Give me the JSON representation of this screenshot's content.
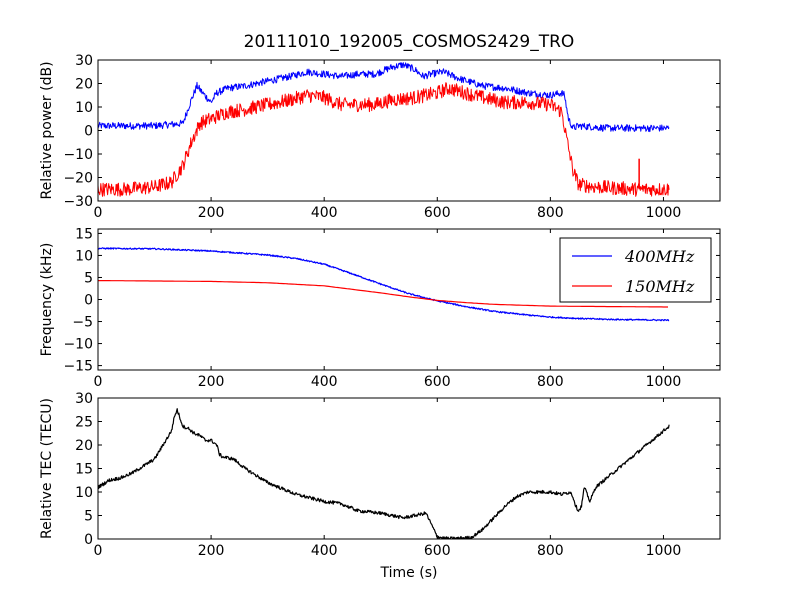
{
  "title": "20111010_192005_COSMOS2429_TRO",
  "xlabel": "Time (s)",
  "chart_data": [
    {
      "type": "line",
      "ylabel": "Relative power (dB)",
      "xlim": [
        0,
        1100
      ],
      "ylim": [
        -30,
        30
      ],
      "xticks": [
        "0",
        "200",
        "400",
        "600",
        "800",
        "1000"
      ],
      "yticks": [
        "30",
        "20",
        "10",
        "0",
        "−10",
        "−20",
        "−30"
      ],
      "series": [
        {
          "color": "#0000ff",
          "noise": 1.5,
          "x": [
            0,
            50,
            100,
            150,
            165,
            175,
            185,
            200,
            210,
            230,
            260,
            300,
            340,
            370,
            400,
            430,
            460,
            490,
            520,
            540,
            560,
            575,
            590,
            610,
            640,
            680,
            720,
            760,
            800,
            820,
            825,
            832,
            840,
            850,
            900,
            950,
            1000,
            1010
          ],
          "y": [
            2,
            2,
            2,
            3,
            13,
            19,
            16,
            12,
            16,
            18,
            19,
            21,
            23,
            25,
            24,
            23,
            24,
            24,
            27,
            28,
            26,
            23,
            24,
            25,
            22,
            19,
            18,
            16,
            15,
            16,
            15,
            5,
            1,
            2,
            1,
            1,
            1,
            1
          ]
        },
        {
          "color": "#ff0000",
          "noise": 3,
          "x": [
            0,
            50,
            100,
            130,
            150,
            165,
            180,
            200,
            230,
            260,
            300,
            340,
            370,
            400,
            430,
            460,
            490,
            520,
            560,
            600,
            620,
            650,
            680,
            720,
            760,
            800,
            820,
            830,
            840,
            850,
            880,
            950,
            1000,
            1010
          ],
          "y": [
            -25,
            -25,
            -24,
            -22,
            -15,
            -5,
            3,
            5,
            8,
            9,
            11,
            13,
            15,
            14,
            11,
            11,
            11,
            13,
            14,
            16,
            18,
            16,
            14,
            12,
            12,
            11,
            8,
            -5,
            -17,
            -23,
            -24,
            -25,
            -25,
            -25
          ]
        }
      ],
      "annotations": [
        {
          "x": 957,
          "y": -12,
          "color": "#ff0000"
        }
      ]
    },
    {
      "type": "line",
      "ylabel": "Frequency (kHz)",
      "xlim": [
        0,
        1100
      ],
      "ylim": [
        -16,
        16
      ],
      "xticks": [
        "0",
        "200",
        "400",
        "600",
        "800",
        "1000"
      ],
      "yticks": [
        "15",
        "10",
        "5",
        "0",
        "−5",
        "−10",
        "−15"
      ],
      "legend": {
        "position": "upper right"
      },
      "series": [
        {
          "name": "400MHz",
          "color": "#0000ff",
          "noise": 0.15,
          "x": [
            0,
            100,
            200,
            300,
            350,
            400,
            450,
            500,
            550,
            600,
            650,
            700,
            750,
            800,
            850,
            900,
            950,
            1010
          ],
          "y": [
            11.6,
            11.5,
            11.0,
            10.1,
            9.3,
            8.0,
            5.8,
            3.5,
            1.3,
            -0.3,
            -1.6,
            -2.7,
            -3.4,
            -4.0,
            -4.3,
            -4.5,
            -4.6,
            -4.7
          ]
        },
        {
          "name": "150MHz",
          "color": "#ff0000",
          "noise": 0,
          "x": [
            0,
            100,
            200,
            300,
            400,
            450,
            500,
            550,
            600,
            650,
            700,
            750,
            800,
            900,
            1010
          ],
          "y": [
            4.3,
            4.2,
            4.1,
            3.8,
            3.1,
            2.3,
            1.5,
            0.6,
            -0.2,
            -0.7,
            -1.1,
            -1.3,
            -1.5,
            -1.6,
            -1.7
          ]
        }
      ]
    },
    {
      "type": "line",
      "ylabel": "Relative TEC (TECU)",
      "xlim": [
        0,
        1100
      ],
      "ylim": [
        0,
        30
      ],
      "xticks": [
        "0",
        "200",
        "400",
        "600",
        "800",
        "1000"
      ],
      "yticks": [
        "30",
        "25",
        "20",
        "15",
        "10",
        "5",
        "0"
      ],
      "series": [
        {
          "color": "#000000",
          "noise": 0.35,
          "x": [
            0,
            20,
            40,
            60,
            80,
            100,
            110,
            120,
            130,
            135,
            140,
            150,
            160,
            170,
            180,
            190,
            200,
            210,
            215,
            220,
            240,
            260,
            300,
            350,
            400,
            430,
            460,
            500,
            540,
            560,
            580,
            590,
            600,
            610,
            620,
            630,
            640,
            660,
            680,
            700,
            720,
            740,
            760,
            780,
            800,
            820,
            835,
            840,
            845,
            850,
            855,
            860,
            870,
            880,
            900,
            920,
            940,
            960,
            980,
            1000,
            1010
          ],
          "y": [
            11,
            12.5,
            13,
            14,
            15.5,
            17,
            19,
            21,
            23,
            26,
            27.5,
            24,
            23.5,
            22.5,
            22,
            21,
            21,
            20,
            18,
            17.5,
            17,
            15,
            12,
            9.5,
            8,
            7.5,
            6,
            5.5,
            4.5,
            5,
            5.5,
            3,
            0.5,
            0.2,
            0.1,
            0.1,
            0.2,
            0.3,
            2,
            4.5,
            7,
            9,
            10,
            10,
            10,
            9.5,
            10,
            9,
            7,
            6,
            7,
            11,
            8,
            11,
            13,
            15,
            17,
            19,
            21,
            23,
            24
          ]
        }
      ]
    }
  ]
}
